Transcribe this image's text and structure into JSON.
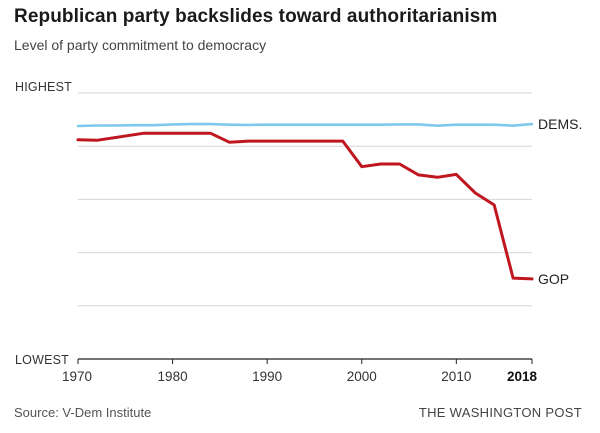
{
  "title": "Republican party backslides toward authoritarianism",
  "subtitle": "Level of party commitment to democracy",
  "source": "Source: V-Dem Institute",
  "credit": "THE WASHINGTON POST",
  "chart_data": {
    "type": "line",
    "ylabel_top": "HIGHEST",
    "ylabel_bottom": "LOWEST",
    "xlim": [
      1970,
      2018
    ],
    "ylim": [
      0,
      1
    ],
    "grid": true,
    "x_ticks": [
      {
        "value": 1970,
        "label": "1970"
      },
      {
        "value": 1980,
        "label": "1980"
      },
      {
        "value": 1990,
        "label": "1990"
      },
      {
        "value": 2000,
        "label": "2000"
      },
      {
        "value": 2010,
        "label": "2010"
      },
      {
        "value": 2018,
        "label": "2018",
        "bold": true
      }
    ],
    "series": [
      {
        "name": "DEMS.",
        "color": "#7dc9ee",
        "x": [
          1970,
          1972,
          1974,
          1976,
          1978,
          1980,
          1982,
          1984,
          1986,
          1988,
          1990,
          1992,
          1994,
          1996,
          1998,
          2000,
          2002,
          2004,
          2006,
          2008,
          2010,
          2012,
          2014,
          2016,
          2018
        ],
        "y": [
          0.876,
          0.878,
          0.878,
          0.879,
          0.879,
          0.882,
          0.883,
          0.883,
          0.881,
          0.88,
          0.881,
          0.881,
          0.881,
          0.881,
          0.881,
          0.881,
          0.881,
          0.882,
          0.882,
          0.877,
          0.881,
          0.881,
          0.881,
          0.877,
          0.883
        ]
      },
      {
        "name": "GOP",
        "color": "#c0161f",
        "x": [
          1970,
          1972,
          1977,
          1984,
          1986,
          1988,
          1993,
          1998,
          2000,
          2002,
          2004,
          2006,
          2008,
          2010,
          2012,
          2014,
          2016,
          2018
        ],
        "y": [
          0.824,
          0.822,
          0.849,
          0.849,
          0.815,
          0.819,
          0.819,
          0.819,
          0.723,
          0.733,
          0.733,
          0.692,
          0.683,
          0.694,
          0.624,
          0.579,
          0.304,
          0.301
        ]
      }
    ]
  }
}
